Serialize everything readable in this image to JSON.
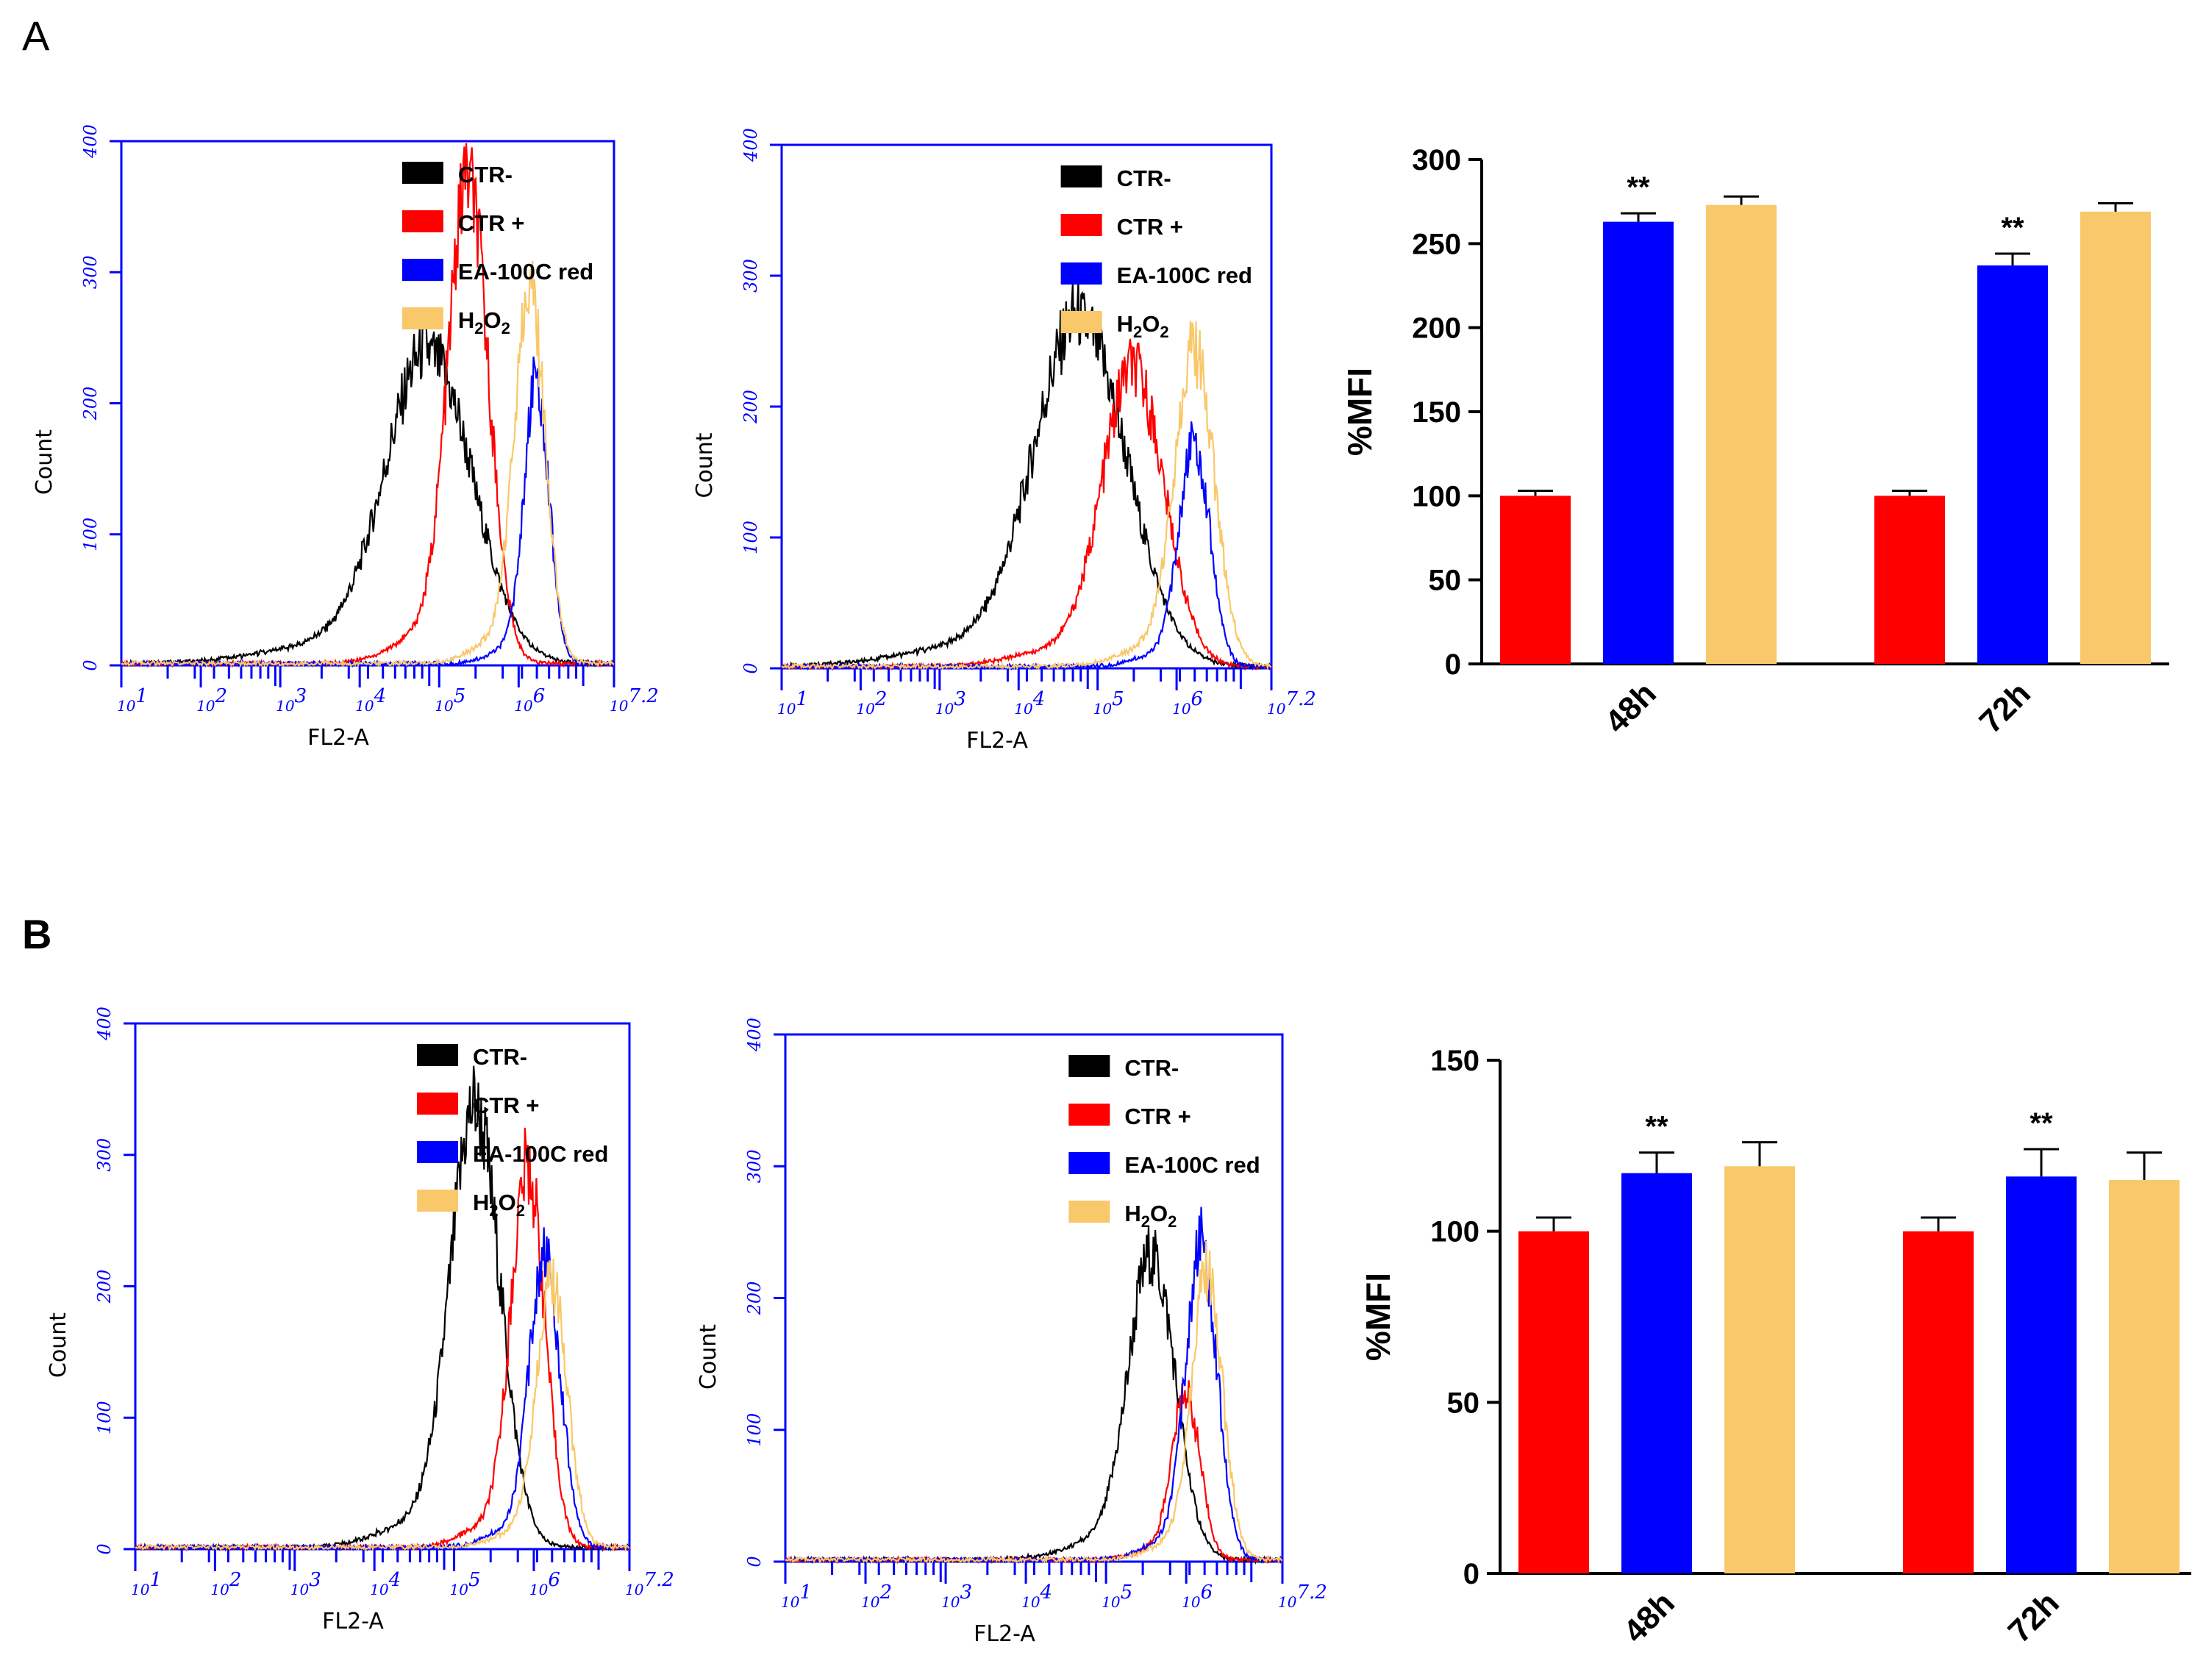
{
  "colors": {
    "ctr_minus": "#000000",
    "ctr_plus": "#ff0000",
    "ea": "#0000ff",
    "h2o2": "#f9c86a",
    "flow_axis": "#0000ff",
    "bar_axis": "#000000"
  },
  "panels": {
    "a_label": "A",
    "b_label": "B"
  },
  "legend": {
    "ctr_minus": "CTR-",
    "ctr_plus": "CTR +",
    "ea": "EA-100C red",
    "h2o2_main": "H",
    "h2o2_sub1": "2",
    "h2o2_mid": "O",
    "h2o2_sub2": "2"
  },
  "flow_axis": {
    "xlabel": "FL2-A",
    "ylabel": "Count",
    "x_ticks": [
      "10",
      "10",
      "10",
      "10",
      "10",
      "10",
      "10"
    ],
    "x_tick_exponents": [
      "1",
      "2",
      "3",
      "4",
      "5",
      "6",
      "7.2"
    ],
    "y_ticks": [
      "0",
      "100",
      "200",
      "300",
      "400"
    ]
  },
  "chart_data": [
    {
      "id": "A-hist-1",
      "type": "line",
      "xscale": "log",
      "xlim": [
        10,
        15849
      ],
      "ylim": [
        0,
        400
      ],
      "xlabel": "FL2-A",
      "ylabel": "Count",
      "legend": "top-right",
      "series": [
        {
          "name": "CTR-",
          "peak_x": 1000,
          "peak_y": 235,
          "width": 0.28
        },
        {
          "name": "CTR +",
          "peak_x": 1800,
          "peak_y": 365,
          "width": 0.13
        },
        {
          "name": "EA-100C red",
          "peak_x": 5000,
          "peak_y": 215,
          "width": 0.08
        },
        {
          "name": "H2O2",
          "peak_x": 4500,
          "peak_y": 285,
          "width": 0.1
        }
      ]
    },
    {
      "id": "A-hist-2",
      "type": "line",
      "xscale": "log",
      "xlim": [
        10,
        15849
      ],
      "ylim": [
        0,
        400
      ],
      "xlabel": "FL2-A",
      "ylabel": "Count",
      "legend": "top-right",
      "series": [
        {
          "name": "CTR-",
          "peak_x": 900,
          "peak_y": 262,
          "width": 0.3
        },
        {
          "name": "CTR +",
          "peak_x": 2000,
          "peak_y": 225,
          "width": 0.2
        },
        {
          "name": "EA-100C red",
          "peak_x": 5000,
          "peak_y": 170,
          "width": 0.1
        },
        {
          "name": "H2O2",
          "peak_x": 5000,
          "peak_y": 240,
          "width": 0.13
        }
      ]
    },
    {
      "id": "A-bar",
      "type": "bar",
      "categories": [
        "48h",
        "72h"
      ],
      "ylabel": "%MFI",
      "ylim": [
        0,
        300
      ],
      "yticks": [
        0,
        50,
        100,
        150,
        200,
        250,
        300
      ],
      "series": [
        {
          "values": [
            100,
            100
          ],
          "errors": [
            3,
            3
          ]
        },
        {
          "values": [
            263,
            237
          ],
          "errors": [
            5,
            7
          ]
        },
        {
          "values": [
            273,
            269
          ],
          "errors": [
            5,
            5
          ]
        }
      ],
      "annotations": [
        {
          "category": "48h",
          "series": 1,
          "text": "**"
        },
        {
          "category": "72h",
          "series": 1,
          "text": "**"
        }
      ]
    },
    {
      "id": "B-hist-1",
      "type": "line",
      "xscale": "log",
      "xlim": [
        10,
        15849
      ],
      "ylim": [
        0,
        400
      ],
      "xlabel": "FL2-A",
      "ylabel": "Count",
      "legend": "top-right",
      "series": [
        {
          "name": "CTR-",
          "peak_x": 1600,
          "peak_y": 330,
          "width": 0.16
        },
        {
          "name": "CTR +",
          "peak_x": 3500,
          "peak_y": 285,
          "width": 0.11
        },
        {
          "name": "EA-100C red",
          "peak_x": 4500,
          "peak_y": 220,
          "width": 0.1
        },
        {
          "name": "H2O2",
          "peak_x": 5000,
          "peak_y": 200,
          "width": 0.1
        }
      ]
    },
    {
      "id": "B-hist-2",
      "type": "line",
      "xscale": "log",
      "xlim": [
        10,
        15849
      ],
      "ylim": [
        0,
        400
      ],
      "xlabel": "FL2-A",
      "ylabel": "Count",
      "legend": "top-right",
      "series": [
        {
          "name": "CTR-",
          "peak_x": 2300,
          "peak_y": 228,
          "width": 0.15
        },
        {
          "name": "CTR +",
          "peak_x": 3800,
          "peak_y": 125,
          "width": 0.09
        },
        {
          "name": "EA-100C red",
          "peak_x": 4800,
          "peak_y": 238,
          "width": 0.1
        },
        {
          "name": "H2O2",
          "peak_x": 5200,
          "peak_y": 215,
          "width": 0.1
        }
      ]
    },
    {
      "id": "B-bar",
      "type": "bar",
      "categories": [
        "48h",
        "72h"
      ],
      "ylabel": "%MFI",
      "ylim": [
        0,
        150
      ],
      "yticks": [
        0,
        50,
        100,
        150
      ],
      "series": [
        {
          "values": [
            100,
            100
          ],
          "errors": [
            4,
            4
          ]
        },
        {
          "values": [
            117,
            116
          ],
          "errors": [
            6,
            8
          ]
        },
        {
          "values": [
            119,
            115
          ],
          "errors": [
            7,
            8
          ]
        }
      ],
      "annotations": [
        {
          "category": "48h",
          "series": 1,
          "text": "**"
        },
        {
          "category": "72h",
          "series": 1,
          "text": "**"
        }
      ]
    }
  ]
}
